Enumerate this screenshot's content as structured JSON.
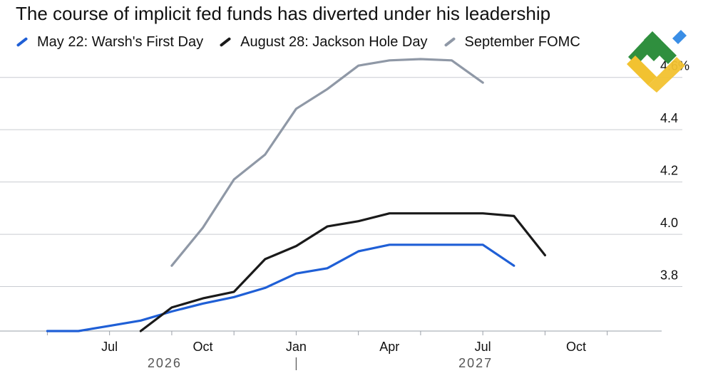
{
  "header": {
    "title": "The course of implicit fed funds has diverted under his leadership"
  },
  "legend": [
    {
      "label": "May 22: Warsh's First Day",
      "color": "#1f5fd6"
    },
    {
      "label": "August 28: Jackson Hole Day",
      "color": "#1a1a1a"
    },
    {
      "label": "September FOMC",
      "color": "#8f98a6"
    }
  ],
  "logo": {
    "icon": "brand-logo-icon",
    "colors": [
      "#2f8f3e",
      "#f2c230",
      "#3a8ee6"
    ]
  },
  "chart_data": {
    "type": "line",
    "title": "The course of implicit fed funds has diverted under his leadership",
    "xlabel": "",
    "ylabel": "",
    "x_range": [
      "2026-05",
      "2027-12"
    ],
    "ylim": [
      3.63,
      4.67
    ],
    "y_ticks": [
      {
        "value": 3.8,
        "label": "3.8"
      },
      {
        "value": 4.0,
        "label": "4.0"
      },
      {
        "value": 4.2,
        "label": "4.2"
      },
      {
        "value": 4.4,
        "label": "4.4"
      },
      {
        "value": 4.6,
        "label": "4.6%"
      }
    ],
    "x_tick_labels": [
      {
        "x": "2026-07",
        "label": "Jul"
      },
      {
        "x": "2026-10",
        "label": "Oct"
      },
      {
        "x": "2027-01",
        "label": "Jan"
      },
      {
        "x": "2027-04",
        "label": "Apr"
      },
      {
        "x": "2027-07",
        "label": "Jul"
      },
      {
        "x": "2027-10",
        "label": "Oct"
      }
    ],
    "year_labels": [
      {
        "x": "2026-09",
        "label": "2026"
      },
      {
        "x": "2027-07",
        "label": "2027"
      }
    ],
    "year_divider": "2027-01",
    "grid": "horizontal",
    "legend_position": "top",
    "series": [
      {
        "name": "May 22: Warsh's First Day",
        "color": "#1f5fd6",
        "points": [
          {
            "x": "2026-05",
            "y": 3.63
          },
          {
            "x": "2026-06",
            "y": 3.63
          },
          {
            "x": "2026-07",
            "y": 3.65
          },
          {
            "x": "2026-08",
            "y": 3.67
          },
          {
            "x": "2026-09",
            "y": 3.705
          },
          {
            "x": "2026-10",
            "y": 3.735
          },
          {
            "x": "2026-11",
            "y": 3.76
          },
          {
            "x": "2026-12",
            "y": 3.795
          },
          {
            "x": "2027-01",
            "y": 3.85
          },
          {
            "x": "2027-02",
            "y": 3.87
          },
          {
            "x": "2027-03",
            "y": 3.935
          },
          {
            "x": "2027-04",
            "y": 3.96
          },
          {
            "x": "2027-05",
            "y": 3.96
          },
          {
            "x": "2027-06",
            "y": 3.96
          },
          {
            "x": "2027-07",
            "y": 3.96
          },
          {
            "x": "2027-08",
            "y": 3.88
          }
        ]
      },
      {
        "name": "August 28: Jackson Hole Day",
        "color": "#1a1a1a",
        "points": [
          {
            "x": "2026-08",
            "y": 3.63
          },
          {
            "x": "2026-09",
            "y": 3.72
          },
          {
            "x": "2026-10",
            "y": 3.755
          },
          {
            "x": "2026-11",
            "y": 3.78
          },
          {
            "x": "2026-12",
            "y": 3.905
          },
          {
            "x": "2027-01",
            "y": 3.955
          },
          {
            "x": "2027-02",
            "y": 4.03
          },
          {
            "x": "2027-03",
            "y": 4.05
          },
          {
            "x": "2027-04",
            "y": 4.08
          },
          {
            "x": "2027-05",
            "y": 4.08
          },
          {
            "x": "2027-06",
            "y": 4.08
          },
          {
            "x": "2027-07",
            "y": 4.08
          },
          {
            "x": "2027-08",
            "y": 4.07
          },
          {
            "x": "2027-09",
            "y": 3.92
          }
        ]
      },
      {
        "name": "September FOMC",
        "color": "#8f98a6",
        "points": [
          {
            "x": "2026-09",
            "y": 3.88
          },
          {
            "x": "2026-10",
            "y": 4.025
          },
          {
            "x": "2026-11",
            "y": 4.21
          },
          {
            "x": "2026-12",
            "y": 4.305
          },
          {
            "x": "2027-01",
            "y": 4.48
          },
          {
            "x": "2027-02",
            "y": 4.555
          },
          {
            "x": "2027-03",
            "y": 4.645
          },
          {
            "x": "2027-04",
            "y": 4.665
          },
          {
            "x": "2027-05",
            "y": 4.67
          },
          {
            "x": "2027-06",
            "y": 4.665
          },
          {
            "x": "2027-07",
            "y": 4.58
          }
        ]
      }
    ]
  }
}
